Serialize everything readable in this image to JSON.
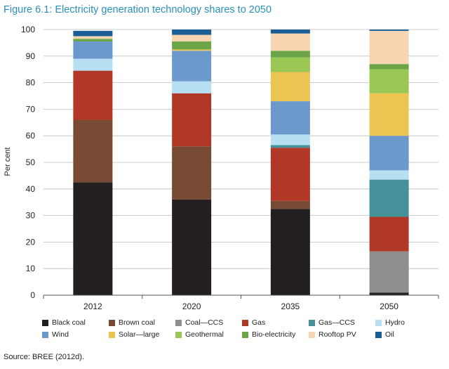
{
  "figure_title": "Figure 6.1: Electricity generation technology shares to 2050",
  "source": "Source: BREE (2012d).",
  "chart_data": {
    "type": "bar",
    "stacked": true,
    "title": "",
    "xlabel": "",
    "ylabel": "Per cent",
    "ylim": [
      0,
      100
    ],
    "yticks": [
      0,
      10,
      20,
      30,
      40,
      50,
      60,
      70,
      80,
      90,
      100
    ],
    "grid": true,
    "legend_position": "bottom",
    "categories": [
      "2012",
      "2020",
      "2035",
      "2050"
    ],
    "series": [
      {
        "name": "Black coal",
        "color": "#231f20",
        "values": [
          42.5,
          36,
          32.5,
          1
        ]
      },
      {
        "name": "Brown coal",
        "color": "#774b33",
        "values": [
          23.5,
          20,
          3,
          0
        ]
      },
      {
        "name": "Coal—CCS",
        "color": "#8e8e8e",
        "values": [
          0,
          0,
          0,
          15.5
        ]
      },
      {
        "name": "Gas",
        "color": "#b13727",
        "values": [
          18.5,
          20,
          20,
          13
        ]
      },
      {
        "name": "Gas—CCS",
        "color": "#44919a",
        "values": [
          0,
          0,
          1,
          14
        ]
      },
      {
        "name": "Hydro",
        "color": "#b6dff2",
        "values": [
          4.5,
          4.5,
          4,
          3.5
        ]
      },
      {
        "name": "Wind",
        "color": "#6b99cc",
        "values": [
          6.5,
          11.5,
          12.5,
          13
        ]
      },
      {
        "name": "Solar—large",
        "color": "#ecc452",
        "values": [
          0,
          0.5,
          11,
          16
        ]
      },
      {
        "name": "Geothermal",
        "color": "#9ac653",
        "values": [
          0,
          0,
          5.5,
          9
        ]
      },
      {
        "name": "Bio-electricity",
        "color": "#6ba547",
        "values": [
          1,
          3,
          2.5,
          2
        ]
      },
      {
        "name": "Rooftop PV",
        "color": "#f6d5b0",
        "values": [
          1,
          2.5,
          6.5,
          12.5
        ]
      },
      {
        "name": "Oil",
        "color": "#1b5e96",
        "values": [
          2,
          2,
          1.5,
          0.5
        ]
      }
    ]
  }
}
